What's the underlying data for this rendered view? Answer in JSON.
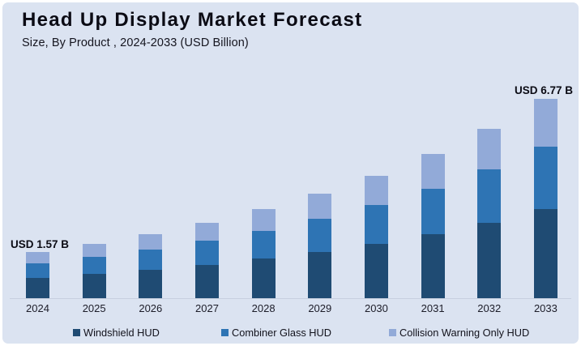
{
  "header": {
    "title": "Head Up Display Market Forecast",
    "subtitle": "Size, By Product , 2024-2033 (USD Billion)"
  },
  "chart_data": {
    "type": "bar",
    "stacked": true,
    "title": "Head Up Display Market Forecast",
    "subtitle": "Size, By Product , 2024-2033 (USD Billion)",
    "unit": "USD Billion",
    "categories": [
      "2024",
      "2025",
      "2026",
      "2027",
      "2028",
      "2029",
      "2030",
      "2031",
      "2032",
      "2033"
    ],
    "series": [
      {
        "name": "Windshield HUD",
        "color": "#1f4b73",
        "values": [
          0.7,
          0.82,
          0.97,
          1.14,
          1.34,
          1.58,
          1.85,
          2.18,
          2.56,
          3.01
        ]
      },
      {
        "name": "Combiner Glass HUD",
        "color": "#2e74b4",
        "values": [
          0.49,
          0.58,
          0.68,
          0.81,
          0.95,
          1.12,
          1.31,
          1.54,
          1.81,
          2.13
        ]
      },
      {
        "name": "Collision Warning Only HUD",
        "color": "#92aad8",
        "values": [
          0.38,
          0.45,
          0.52,
          0.61,
          0.72,
          0.85,
          1.0,
          1.18,
          1.38,
          1.63
        ]
      }
    ],
    "totals": [
      1.57,
      1.85,
      2.17,
      2.56,
      3.01,
      3.55,
      4.16,
      4.9,
      5.75,
      6.77
    ],
    "annotations": [
      {
        "year": "2024",
        "text": "USD 1.57 B"
      },
      {
        "year": "2033",
        "text": "USD 6.77 B"
      }
    ],
    "ylim": [
      0,
      7.0
    ],
    "grid": false,
    "legend_position": "bottom",
    "colors": {
      "background": "#dbe3f1",
      "frame": "#ffffff",
      "axis_line": "#c7cfdf"
    }
  }
}
